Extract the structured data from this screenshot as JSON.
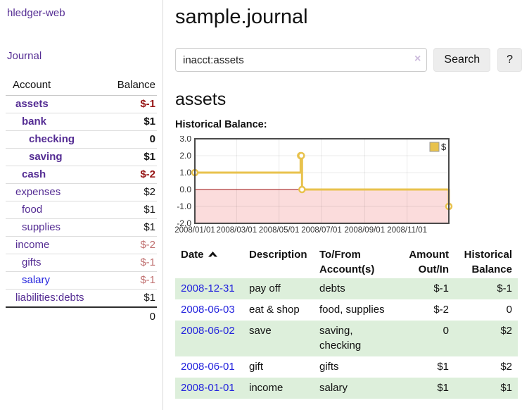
{
  "app": {
    "brand": "hledger-web",
    "nav_journal": "Journal"
  },
  "colors": {
    "purple": "#542c93",
    "blue": "#2323dd",
    "neg_strong": "#961414",
    "neg_light": "#c07070",
    "row_green": "#ddefdb",
    "btn_bg": "#ededed",
    "divider": "#d8d8d8",
    "text": "#111111"
  },
  "sidebar": {
    "header": {
      "account": "Account",
      "balance": "Balance"
    },
    "accounts": [
      {
        "name": "assets",
        "indent": 1,
        "bold": true,
        "balance": "$-1",
        "tone": "neg"
      },
      {
        "name": "bank",
        "indent": 2,
        "bold": true,
        "balance": "$1",
        "tone": ""
      },
      {
        "name": "checking",
        "indent": 3,
        "bold": true,
        "balance": "0",
        "tone": ""
      },
      {
        "name": "saving",
        "indent": 3,
        "bold": true,
        "balance": "$1",
        "tone": ""
      },
      {
        "name": "cash",
        "indent": 2,
        "bold": true,
        "balance": "$-2",
        "tone": "neg"
      },
      {
        "name": "expenses",
        "indent": 1,
        "bold": false,
        "balance": "$2",
        "tone": ""
      },
      {
        "name": "food",
        "indent": 2,
        "bold": false,
        "balance": "$1",
        "tone": ""
      },
      {
        "name": "supplies",
        "indent": 2,
        "bold": false,
        "balance": "$1",
        "tone": ""
      },
      {
        "name": "income",
        "indent": 1,
        "bold": false,
        "balance": "$-2",
        "tone": "negl"
      },
      {
        "name": "gifts",
        "indent": 2,
        "bold": false,
        "balance": "$-1",
        "tone": "negl"
      },
      {
        "name": "salary",
        "indent": 2,
        "bold": false,
        "balance": "$-1",
        "tone": "negl",
        "blue": true
      },
      {
        "name": "liabilities:debts",
        "indent": 1,
        "bold": false,
        "balance": "$1",
        "tone": ""
      }
    ],
    "total": "0"
  },
  "header": {
    "title": "sample.journal"
  },
  "search": {
    "value": "inacct:assets",
    "clear_glyph": "×",
    "button": "Search",
    "help": "?"
  },
  "main": {
    "heading": "assets",
    "chart_label": "Historical Balance:"
  },
  "chart_data": {
    "type": "line",
    "title": "Historical Balance:",
    "xlim": [
      "2008-01-01",
      "2008-12-31"
    ],
    "ylim": [
      -2,
      3
    ],
    "y_ticks": [
      {
        "v": 3,
        "label": "3.0"
      },
      {
        "v": 2,
        "label": "2.0"
      },
      {
        "v": 1,
        "label": "1.0"
      },
      {
        "v": 0,
        "label": "0.0"
      },
      {
        "v": -1,
        "label": "-1.0"
      },
      {
        "v": -2,
        "label": "-2.0"
      }
    ],
    "x_ticks": [
      {
        "date": "2008-01-01",
        "label": "2008/01/01"
      },
      {
        "date": "2008-03-01",
        "label": "2008/03/01"
      },
      {
        "date": "2008-05-01",
        "label": "2008/05/01"
      },
      {
        "date": "2008-07-01",
        "label": "2008/07/01"
      },
      {
        "date": "2008-09-01",
        "label": "2008/09/01"
      },
      {
        "date": "2008-11-01",
        "label": "2008/11/01"
      }
    ],
    "series": [
      {
        "name": "$",
        "color": "#e8c24d",
        "step": true,
        "points": [
          [
            "2008-01-01",
            1
          ],
          [
            "2008-06-01",
            2
          ],
          [
            "2008-06-02",
            2
          ],
          [
            "2008-06-03",
            0
          ],
          [
            "2008-12-31",
            -1
          ]
        ]
      }
    ],
    "negative_region_color": "#fbdcdc",
    "zero_line_color": "#9c1111",
    "border_color": "#4a4a4a",
    "legend": {
      "label": "$",
      "position": "top-right"
    },
    "grid": true
  },
  "table": {
    "columns": [
      {
        "l1": "Date",
        "l2": ""
      },
      {
        "l1": "Description",
        "l2": ""
      },
      {
        "l1": "To/From",
        "l2": "Account(s)"
      },
      {
        "l1": "Amount",
        "l2": "Out/In"
      },
      {
        "l1": "Historical",
        "l2": "Balance"
      }
    ],
    "sort": "ascending",
    "rows": [
      {
        "date": "2008-12-31",
        "description": "pay off",
        "accounts": "debts",
        "amount": "$-1",
        "amount_tone": "neg",
        "balance": "$-1",
        "balance_tone": "neg"
      },
      {
        "date": "2008-06-03",
        "description": "eat & shop",
        "accounts": "food, supplies",
        "amount": "$-2",
        "amount_tone": "neg",
        "balance": "0",
        "balance_tone": ""
      },
      {
        "date": "2008-06-02",
        "description": "save",
        "accounts": "saving,\nchecking",
        "amount": "0",
        "amount_tone": "",
        "balance": "$2",
        "balance_tone": ""
      },
      {
        "date": "2008-06-01",
        "description": "gift",
        "accounts": "gifts",
        "amount": "$1",
        "amount_tone": "",
        "balance": "$2",
        "balance_tone": ""
      },
      {
        "date": "2008-01-01",
        "description": "income",
        "accounts": "salary",
        "amount": "$1",
        "amount_tone": "",
        "balance": "$1",
        "balance_tone": ""
      }
    ]
  }
}
